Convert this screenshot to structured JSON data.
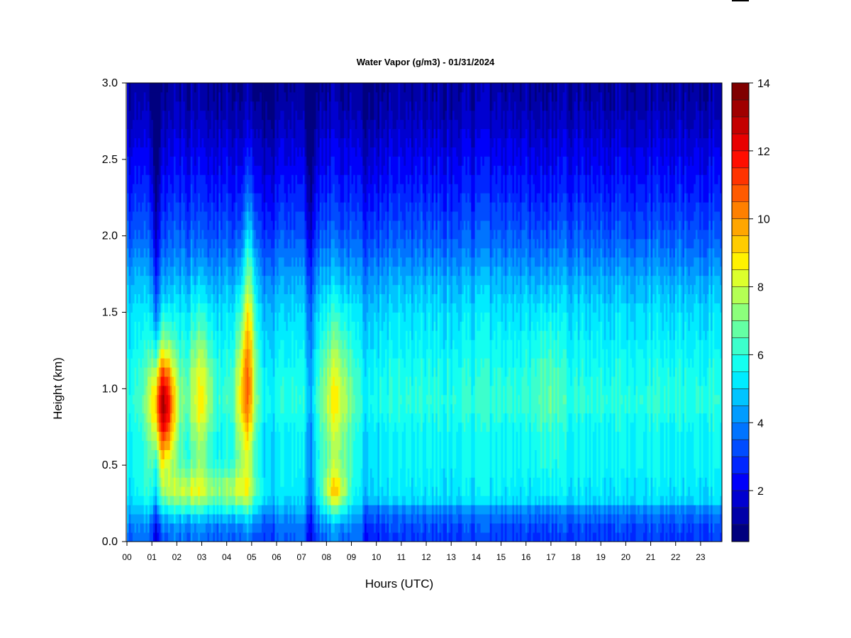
{
  "chart_data": {
    "type": "heatmap",
    "title": "Water Vapor (g/m3) - 01/31/2024",
    "xlabel": "Hours (UTC)",
    "ylabel": "Height (km)",
    "x_ticks": [
      "00",
      "01",
      "02",
      "03",
      "04",
      "05",
      "06",
      "07",
      "08",
      "09",
      "10",
      "11",
      "12",
      "13",
      "14",
      "15",
      "16",
      "17",
      "18",
      "19",
      "20",
      "21",
      "22",
      "23"
    ],
    "y_ticks": [
      "0.0",
      "0.5",
      "1.0",
      "1.5",
      "2.0",
      "2.5",
      "3.0"
    ],
    "xlim": [
      0,
      24
    ],
    "ylim": [
      0,
      3.0
    ],
    "colorbar": {
      "ticks": [
        "2",
        "4",
        "6",
        "8",
        "10",
        "12",
        "14"
      ],
      "range": [
        0.5,
        14
      ],
      "levels": 27,
      "colors": [
        "#00007f",
        "#0000a8",
        "#0000d0",
        "#0000fa",
        "#0026ff",
        "#004cff",
        "#0074ff",
        "#009cff",
        "#00c4ff",
        "#00ecff",
        "#14fff0",
        "#3cffcc",
        "#64ffa4",
        "#8cff7c",
        "#b4ff54",
        "#dcff2c",
        "#fff200",
        "#ffcc00",
        "#ffa600",
        "#ff8000",
        "#ff5a00",
        "#ff3400",
        "#ff0e00",
        "#e80000",
        "#c40000",
        "#a00000",
        "#800000"
      ]
    },
    "grid": false,
    "profile": {
      "heights_km": [
        0.0,
        0.1,
        0.3,
        0.5,
        0.7,
        0.9,
        1.1,
        1.3,
        1.5,
        1.7,
        2.0,
        2.3,
        2.6,
        2.8,
        3.0
      ],
      "values": [
        3.5,
        3.8,
        5.2,
        5.5,
        5.5,
        6.0,
        5.8,
        5.4,
        5.1,
        4.5,
        3.4,
        2.6,
        1.9,
        1.4,
        1.1
      ]
    },
    "events": [
      {
        "hour": 1.45,
        "height_km": 0.88,
        "peak": 13.2,
        "width_h": 0.35,
        "height_spread_km": 0.28
      },
      {
        "hour": 2.95,
        "height_km": 0.95,
        "peak": 8.6,
        "width_h": 0.35,
        "height_spread_km": 0.35
      },
      {
        "hour": 4.75,
        "height_km": 0.95,
        "peak": 9.6,
        "width_h": 0.3,
        "height_spread_km": 0.4
      },
      {
        "hour": 4.9,
        "height_km": 1.6,
        "peak": 7.0,
        "width_h": 0.18,
        "height_spread_km": 0.5
      },
      {
        "hour": 8.4,
        "height_km": 0.9,
        "peak": 8.6,
        "width_h": 0.4,
        "height_spread_km": 0.4
      },
      {
        "hour": 8.35,
        "height_km": 0.33,
        "peak": 8.0,
        "width_h": 0.35,
        "height_spread_km": 0.1
      },
      {
        "hour": 2.5,
        "height_km": 0.33,
        "peak": 7.8,
        "width_h": 0.9,
        "height_spread_km": 0.1
      },
      {
        "hour": 4.5,
        "height_km": 0.33,
        "peak": 7.4,
        "width_h": 0.6,
        "height_spread_km": 0.1
      },
      {
        "hour": 16.8,
        "height_km": 1.0,
        "peak": 6.8,
        "width_h": 0.4,
        "height_spread_km": 0.4
      }
    ]
  }
}
